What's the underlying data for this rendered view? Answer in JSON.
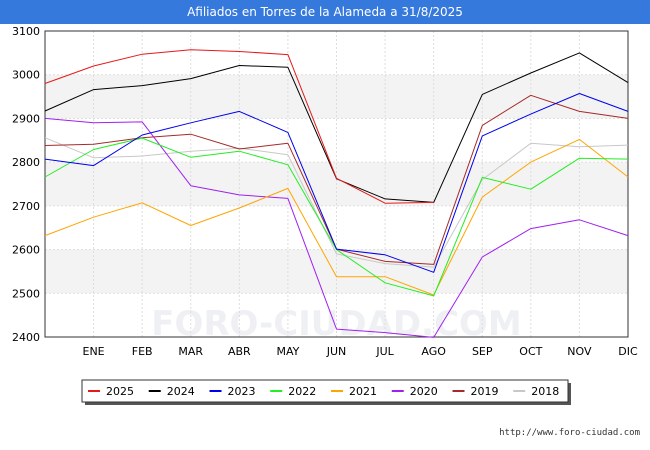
{
  "header": {
    "title": "Afiliados en Torres de la Alameda a 31/8/2025"
  },
  "watermark": "FORO-CIUDAD.COM",
  "source": "http://www.foro-ciudad.com",
  "chart_data": {
    "type": "line",
    "title": "Afiliados en Torres de la Alameda a 31/8/2025",
    "xlabel": "",
    "ylabel": "",
    "categories": [
      "",
      "ENE",
      "FEB",
      "MAR",
      "ABR",
      "MAY",
      "JUN",
      "JUL",
      "AGO",
      "SEP",
      "OCT",
      "NOV",
      "DIC"
    ],
    "ylim": [
      2400,
      3100
    ],
    "yticks": [
      2400,
      2500,
      2600,
      2700,
      2800,
      2900,
      3000,
      3100
    ],
    "grid": true,
    "legend_position": "bottom",
    "series": [
      {
        "name": "2025",
        "color": "#e41a1c",
        "values": [
          2980,
          3020,
          3047,
          3057,
          3053,
          3046,
          2763,
          2706,
          2708,
          null,
          null,
          null,
          null
        ]
      },
      {
        "name": "2024",
        "color": "#000000",
        "values": [
          2917,
          2966,
          2975,
          2991,
          3021,
          3017,
          2762,
          2716,
          2708,
          2955,
          3004,
          3050,
          2982
        ]
      },
      {
        "name": "2023",
        "color": "#0000ee",
        "values": [
          2807,
          2792,
          2862,
          2890,
          2916,
          2868,
          2601,
          2588,
          2548,
          2860,
          2910,
          2957,
          2916
        ]
      },
      {
        "name": "2022",
        "color": "#22ee22",
        "values": [
          2766,
          2829,
          2855,
          2811,
          2825,
          2794,
          2600,
          2524,
          2494,
          2765,
          2738,
          2809,
          2807
        ]
      },
      {
        "name": "2021",
        "color": "#ffa500",
        "values": [
          2632,
          2674,
          2707,
          2655,
          2695,
          2740,
          2538,
          2538,
          2496,
          2720,
          2800,
          2852,
          2766
        ]
      },
      {
        "name": "2020",
        "color": "#a020f0",
        "values": [
          2900,
          2890,
          2892,
          2746,
          2725,
          2717,
          2418,
          2410,
          2399,
          2583,
          2648,
          2668,
          2632
        ]
      },
      {
        "name": "2019",
        "color": "#a52a2a",
        "values": [
          2838,
          2841,
          2856,
          2864,
          2830,
          2843,
          2601,
          2573,
          2566,
          2884,
          2953,
          2916,
          2900
        ]
      },
      {
        "name": "2018",
        "color": "#c8c8c8",
        "values": [
          2856,
          2810,
          2814,
          2825,
          2832,
          2817,
          2590,
          2568,
          2560,
          2760,
          2843,
          2835,
          2839
        ]
      }
    ]
  }
}
